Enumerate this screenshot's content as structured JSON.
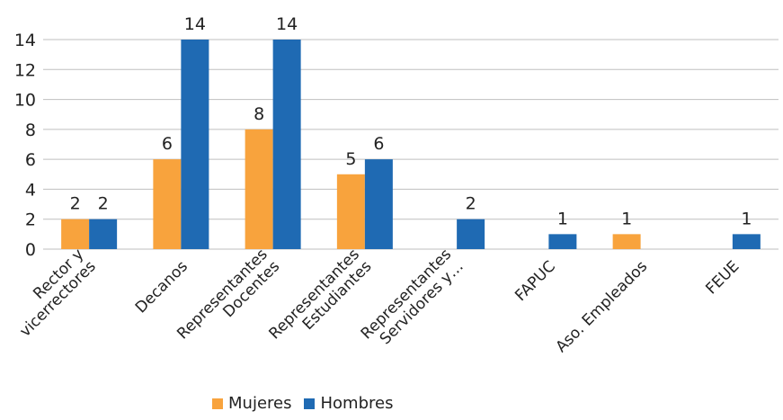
{
  "chart_data": {
    "type": "bar",
    "categories": [
      [
        "Rector y",
        "vicerrectores"
      ],
      [
        "Decanos"
      ],
      [
        "Representantes",
        "Docentes"
      ],
      [
        "Representantes",
        "Estudiantes"
      ],
      [
        "Representantes",
        "Servidores y…"
      ],
      [
        "FAPUC"
      ],
      [
        "Aso. Empleados"
      ],
      [
        "FEUE"
      ]
    ],
    "series": [
      {
        "name": "Mujeres",
        "color": "#F8A33D",
        "values": [
          2,
          6,
          8,
          5,
          null,
          null,
          1,
          null
        ]
      },
      {
        "name": "Hombres",
        "color": "#1F6AB3",
        "values": [
          2,
          14,
          14,
          6,
          2,
          1,
          null,
          1
        ]
      }
    ],
    "ylim": [
      0,
      14
    ],
    "yticks": [
      0,
      2,
      4,
      6,
      8,
      10,
      12,
      14
    ],
    "grid": true,
    "legend_position": "bottom"
  }
}
